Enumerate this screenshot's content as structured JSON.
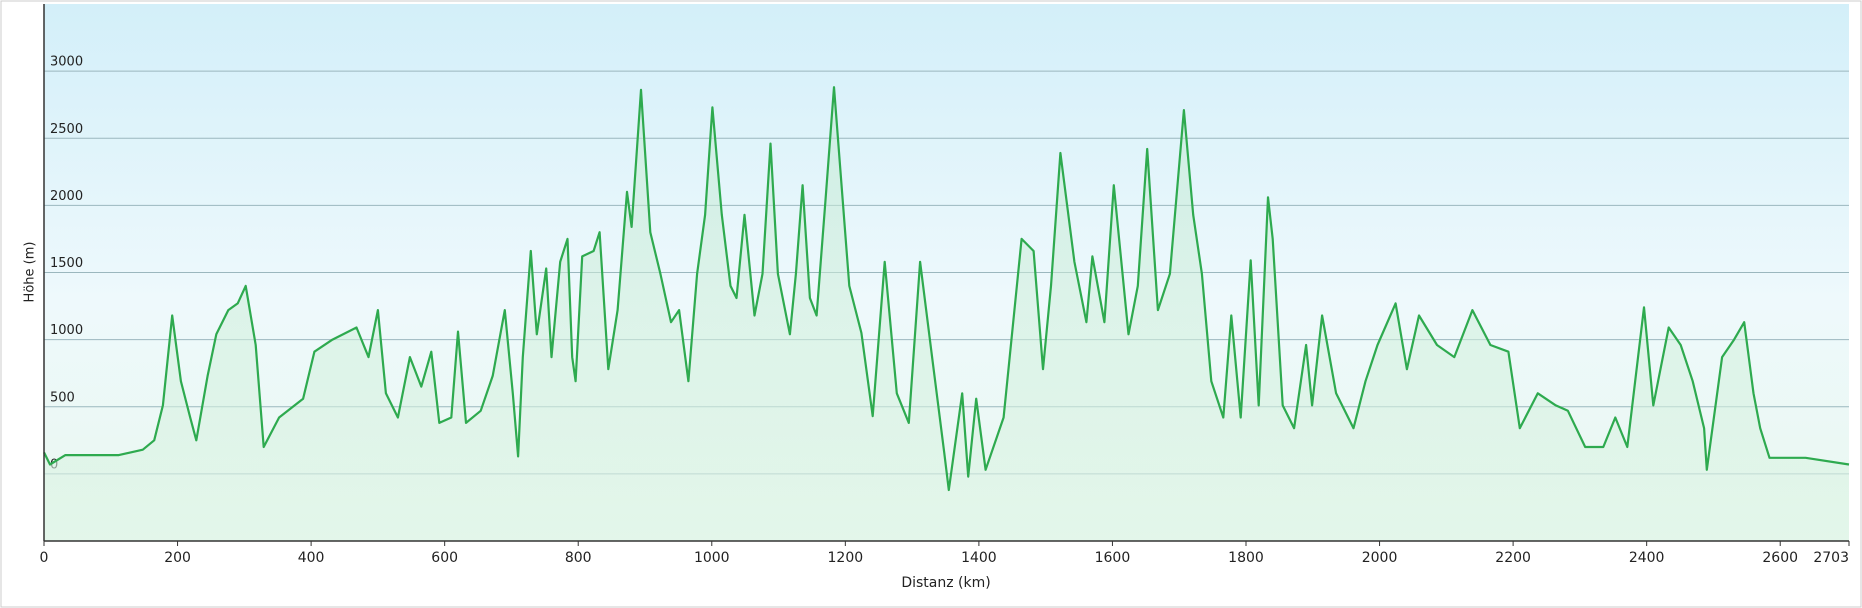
{
  "chart_data": {
    "type": "line",
    "x_label": "Distanz  (km)",
    "y_label": "Höhe (m)",
    "x": [
      0,
      9,
      32,
      68,
      112,
      148,
      165,
      178,
      192,
      205,
      219,
      228,
      245,
      258,
      276,
      290,
      302,
      317,
      329,
      352,
      388,
      405,
      432,
      468,
      486,
      500,
      512,
      530,
      548,
      565,
      580,
      592,
      610,
      620,
      632,
      654,
      672,
      690,
      702,
      710,
      717,
      729,
      738,
      752,
      760,
      773,
      784,
      791,
      796,
      806,
      823,
      832,
      845,
      859,
      873,
      880,
      894,
      908,
      923,
      939,
      951,
      965,
      978,
      990,
      1001,
      1015,
      1028,
      1037,
      1049,
      1064,
      1076,
      1088,
      1099,
      1117,
      1126,
      1136,
      1147,
      1157,
      1170,
      1183,
      1206,
      1224,
      1241,
      1259,
      1277,
      1295,
      1312,
      1330,
      1348,
      1355,
      1375,
      1384,
      1396,
      1410,
      1437,
      1464,
      1482,
      1496,
      1508,
      1522,
      1543,
      1561,
      1570,
      1588,
      1602,
      1624,
      1638,
      1652,
      1668,
      1686,
      1707,
      1721,
      1734,
      1748,
      1766,
      1778,
      1792,
      1807,
      1819,
      1833,
      1840,
      1855,
      1872,
      1890,
      1899,
      1914,
      1935,
      1961,
      1979,
      1997,
      2024,
      2041,
      2059,
      2086,
      2112,
      2139,
      2166,
      2193,
      2210,
      2237,
      2264,
      2282,
      2308,
      2335,
      2353,
      2371,
      2396,
      2410,
      2433,
      2451,
      2469,
      2486,
      2490,
      2513,
      2531,
      2546,
      2560,
      2570,
      2584,
      2638,
      2703
    ],
    "series": [
      {
        "color": "#2eaa4f",
        "values": [
          160,
          70,
          140,
          140,
          140,
          180,
          250,
          510,
          1180,
          690,
          420,
          250,
          730,
          1040,
          1220,
          1270,
          1400,
          960,
          200,
          420,
          560,
          910,
          1000,
          1090,
          870,
          1220,
          600,
          420,
          870,
          650,
          910,
          380,
          420,
          1060,
          380,
          470,
          730,
          1220,
          600,
          130,
          870,
          1660,
          1040,
          1530,
          870,
          1580,
          1750,
          870,
          690,
          1620,
          1660,
          1800,
          780,
          1220,
          2100,
          1840,
          2860,
          1800,
          1490,
          1130,
          1220,
          690,
          1490,
          1930,
          2730,
          1930,
          1400,
          1310,
          1930,
          1180,
          1490,
          2460,
          1490,
          1040,
          1490,
          2150,
          1310,
          1180,
          2020,
          2880,
          1400,
          1050,
          430,
          1580,
          600,
          380,
          1580,
          870,
          160,
          -120,
          600,
          -20,
          560,
          30,
          420,
          1750,
          1660,
          780,
          1400,
          2390,
          1580,
          1130,
          1620,
          1130,
          2150,
          1040,
          1400,
          2420,
          1220,
          1490,
          2710,
          1930,
          1490,
          690,
          420,
          1180,
          420,
          1590,
          510,
          2060,
          1750,
          510,
          340,
          960,
          510,
          1180,
          600,
          340,
          690,
          960,
          1270,
          780,
          1180,
          960,
          870,
          1220,
          960,
          910,
          340,
          600,
          510,
          470,
          200,
          200,
          420,
          200,
          1240,
          510,
          1090,
          960,
          690,
          340,
          30,
          870,
          1000,
          1130,
          600,
          340,
          120,
          120,
          70
        ]
      }
    ],
    "xlim": [
      0,
      2703
    ],
    "xticks": [
      0,
      200,
      400,
      600,
      800,
      1000,
      1200,
      1400,
      1600,
      1800,
      2000,
      2200,
      2400,
      2600,
      2703
    ],
    "ylim": [
      -500,
      3500
    ],
    "yticks": [
      0,
      500,
      1000,
      1500,
      2000,
      2500,
      3000
    ],
    "grid": true
  }
}
